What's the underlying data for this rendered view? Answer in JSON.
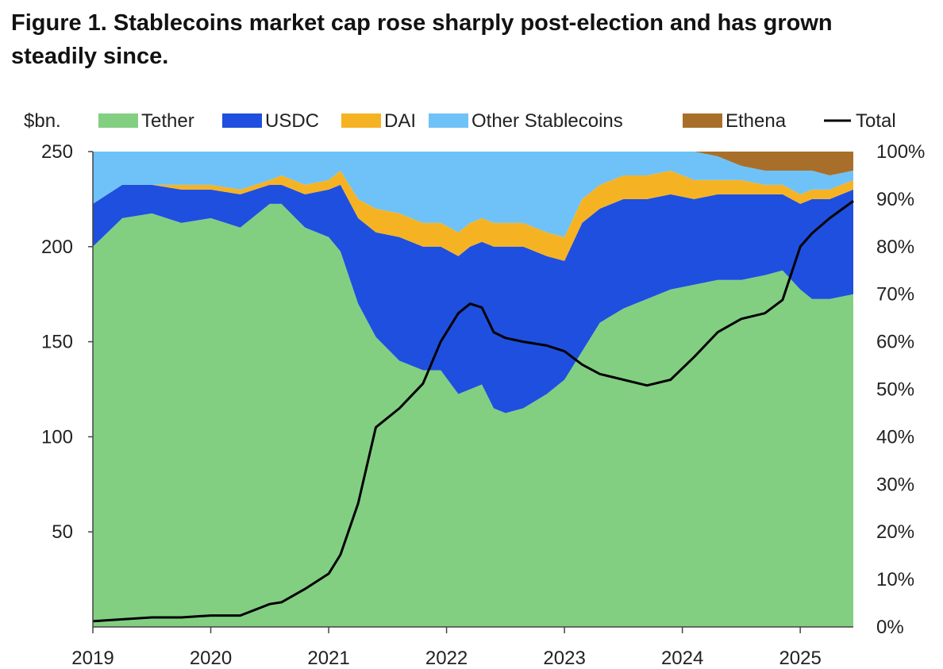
{
  "figure": {
    "title": "Figure 1. Stablecoins market cap rose sharply post-election and has grown steadily since."
  },
  "chart_data": {
    "type": "area",
    "stacking": "100% stacked area (left share of total market cap, read against right axis) with total line on left axis",
    "y_left_unit_label": "$bn.",
    "y_left_range": [
      0,
      250
    ],
    "y_left_ticks": [
      "250",
      "200",
      "150",
      "100",
      "50"
    ],
    "y_right_range": [
      0,
      100
    ],
    "y_right_ticks": [
      "100%",
      "90%",
      "80%",
      "70%",
      "60%",
      "50%",
      "40%",
      "30%",
      "20%",
      "10%",
      "0%"
    ],
    "x_range": [
      2019.0,
      2025.45
    ],
    "x_ticks": [
      "2019",
      "2020",
      "2021",
      "2022",
      "2023",
      "2024",
      "2025"
    ],
    "legend_position": "top",
    "x": [
      2019.0,
      2019.25,
      2019.5,
      2019.75,
      2020.0,
      2020.25,
      2020.5,
      2020.6,
      2020.8,
      2021.0,
      2021.1,
      2021.25,
      2021.4,
      2021.6,
      2021.8,
      2021.95,
      2022.1,
      2022.2,
      2022.3,
      2022.4,
      2022.5,
      2022.65,
      2022.85,
      2023.0,
      2023.15,
      2023.3,
      2023.5,
      2023.7,
      2023.9,
      2024.1,
      2024.3,
      2024.5,
      2024.7,
      2024.85,
      2025.0,
      2025.1,
      2025.25,
      2025.45
    ],
    "series": [
      {
        "name": "Tether",
        "color": "#82cf82",
        "values": [
          80,
          86,
          87,
          85,
          86,
          84,
          89,
          89,
          84,
          82,
          79,
          68,
          61,
          56,
          54,
          54,
          49,
          50,
          51,
          46,
          45,
          46,
          49,
          52,
          58,
          64,
          67,
          69,
          71,
          72,
          73,
          73,
          74,
          75,
          71,
          69,
          69,
          70
        ]
      },
      {
        "name": "USDC",
        "color": "#1f4fde",
        "values": [
          9,
          7,
          6,
          7,
          6,
          7,
          4,
          4,
          7,
          10,
          14,
          18,
          22,
          26,
          26,
          26,
          29,
          30,
          30,
          34,
          35,
          34,
          29,
          25,
          27,
          24,
          23,
          21,
          20,
          18,
          18,
          18,
          17,
          16,
          18,
          21,
          21,
          22
        ]
      },
      {
        "name": "DAI",
        "color": "#f5b324",
        "values": [
          0,
          0,
          0,
          1,
          1,
          1,
          1,
          2,
          2,
          2,
          3,
          4,
          5,
          5,
          5,
          5,
          5,
          5,
          5,
          5,
          5,
          5,
          5,
          5,
          5,
          5,
          5,
          5,
          5,
          4,
          3,
          3,
          2,
          2,
          2,
          2,
          2,
          2
        ]
      },
      {
        "name": "Other Stablecoins",
        "color": "#6ec2f7",
        "values": [
          11,
          7,
          7,
          7,
          7,
          8,
          6,
          5,
          7,
          6,
          4,
          10,
          12,
          13,
          15,
          15,
          17,
          15,
          14,
          15,
          15,
          15,
          17,
          18,
          10,
          7,
          5,
          5,
          4,
          6,
          5,
          3,
          3,
          3,
          5,
          4,
          3,
          2
        ]
      },
      {
        "name": "Ethena",
        "color": "#a86f2a",
        "values": [
          0,
          0,
          0,
          0,
          0,
          0,
          0,
          0,
          0,
          0,
          0,
          0,
          0,
          0,
          0,
          0,
          0,
          0,
          0,
          0,
          0,
          0,
          0,
          0,
          0,
          0,
          0,
          0,
          0,
          0,
          1,
          3,
          4,
          4,
          4,
          4,
          5,
          4
        ]
      },
      {
        "name": "Total",
        "color": "#000000",
        "type": "line",
        "axis": "left",
        "values": [
          3,
          4,
          5,
          5,
          6,
          6,
          12,
          13,
          20,
          28,
          38,
          65,
          105,
          115,
          128,
          150,
          165,
          170,
          168,
          155,
          152,
          150,
          148,
          145,
          138,
          133,
          130,
          127,
          130,
          142,
          155,
          162,
          165,
          172,
          200,
          207,
          215,
          224
        ]
      }
    ]
  }
}
